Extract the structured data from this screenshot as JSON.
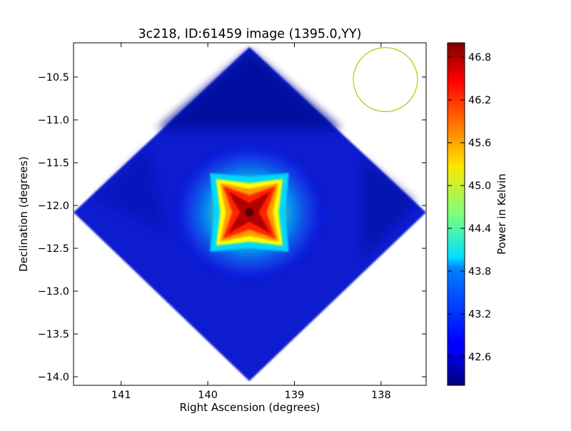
{
  "chart_data": {
    "type": "heatmap",
    "title": "3c218, ID:61459 image (1395.0,YY)",
    "xlabel": "Right Ascension (degrees)",
    "ylabel": "Declination (degrees)",
    "xlim": [
      141.55,
      137.48
    ],
    "ylim": [
      -14.1,
      -10.1
    ],
    "x_ticks": [
      141,
      140,
      139,
      138
    ],
    "x_tick_labels": [
      "141",
      "140",
      "139",
      "138"
    ],
    "y_ticks": [
      -10.5,
      -11.0,
      -11.5,
      -12.0,
      -12.5,
      -13.0,
      -13.5,
      -14.0
    ],
    "y_tick_labels": [
      "−10.5",
      "−11.0",
      "−11.5",
      "−12.0",
      "−12.5",
      "−13.0",
      "−13.5",
      "−14.0"
    ],
    "image_footprint_vertices_deg": [
      [
        139.52,
        -10.15
      ],
      [
        141.55,
        -12.08
      ],
      [
        139.52,
        -14.05
      ],
      [
        137.48,
        -12.08
      ]
    ],
    "peak": {
      "ra": 139.52,
      "dec": -12.08,
      "value": 47.0
    },
    "background_level": 42.2,
    "beam_circle": {
      "ra": 137.95,
      "dec": -10.53,
      "radius_deg": 0.37,
      "color": "#bfbf00"
    },
    "colorbar": {
      "label": "Power in Kelvin",
      "range": [
        42.2,
        47.0
      ],
      "ticks": [
        42.6,
        43.2,
        43.8,
        44.4,
        45.0,
        45.6,
        46.2,
        46.8
      ],
      "tick_labels": [
        "42.6",
        "43.2",
        "43.8",
        "44.4",
        "45.0",
        "45.6",
        "46.2",
        "46.8"
      ],
      "colormap": "jet"
    }
  }
}
